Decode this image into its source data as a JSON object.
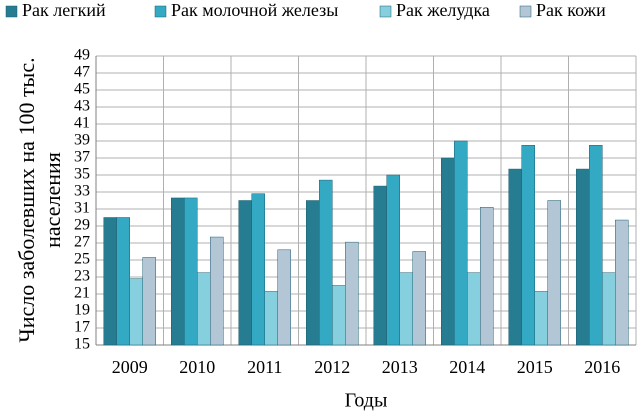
{
  "chart_data": {
    "type": "bar",
    "categories": [
      "2009",
      "2010",
      "2011",
      "2012",
      "2013",
      "2014",
      "2015",
      "2016"
    ],
    "series": [
      {
        "name": "Рак легкий",
        "color": "#267c91",
        "values": [
          30,
          32.3,
          32,
          32,
          33.7,
          37,
          35.7,
          35.7
        ]
      },
      {
        "name": "Рак молочной железы",
        "color": "#34a9c4",
        "values": [
          30,
          32.3,
          32.8,
          34.4,
          35,
          39,
          38.5,
          38.5
        ]
      },
      {
        "name": "Рак желудка",
        "color": "#86cfde",
        "values": [
          22.8,
          23.5,
          21.3,
          22,
          23.5,
          23.5,
          21.3,
          23.5
        ]
      },
      {
        "name": "Рак кожи",
        "color": "#b3c6d6",
        "values": [
          25.3,
          27.7,
          26.2,
          27.1,
          26,
          31.2,
          32,
          29.7
        ]
      }
    ],
    "ylabel": "Число заболевших на 100 тыс. населения",
    "xlabel": "Годы",
    "ylim": [
      15,
      49
    ],
    "yticks": [
      15,
      17,
      19,
      21,
      23,
      25,
      27,
      29,
      31,
      33,
      35,
      37,
      39,
      41,
      43,
      45,
      47,
      49
    ],
    "grid": true
  }
}
